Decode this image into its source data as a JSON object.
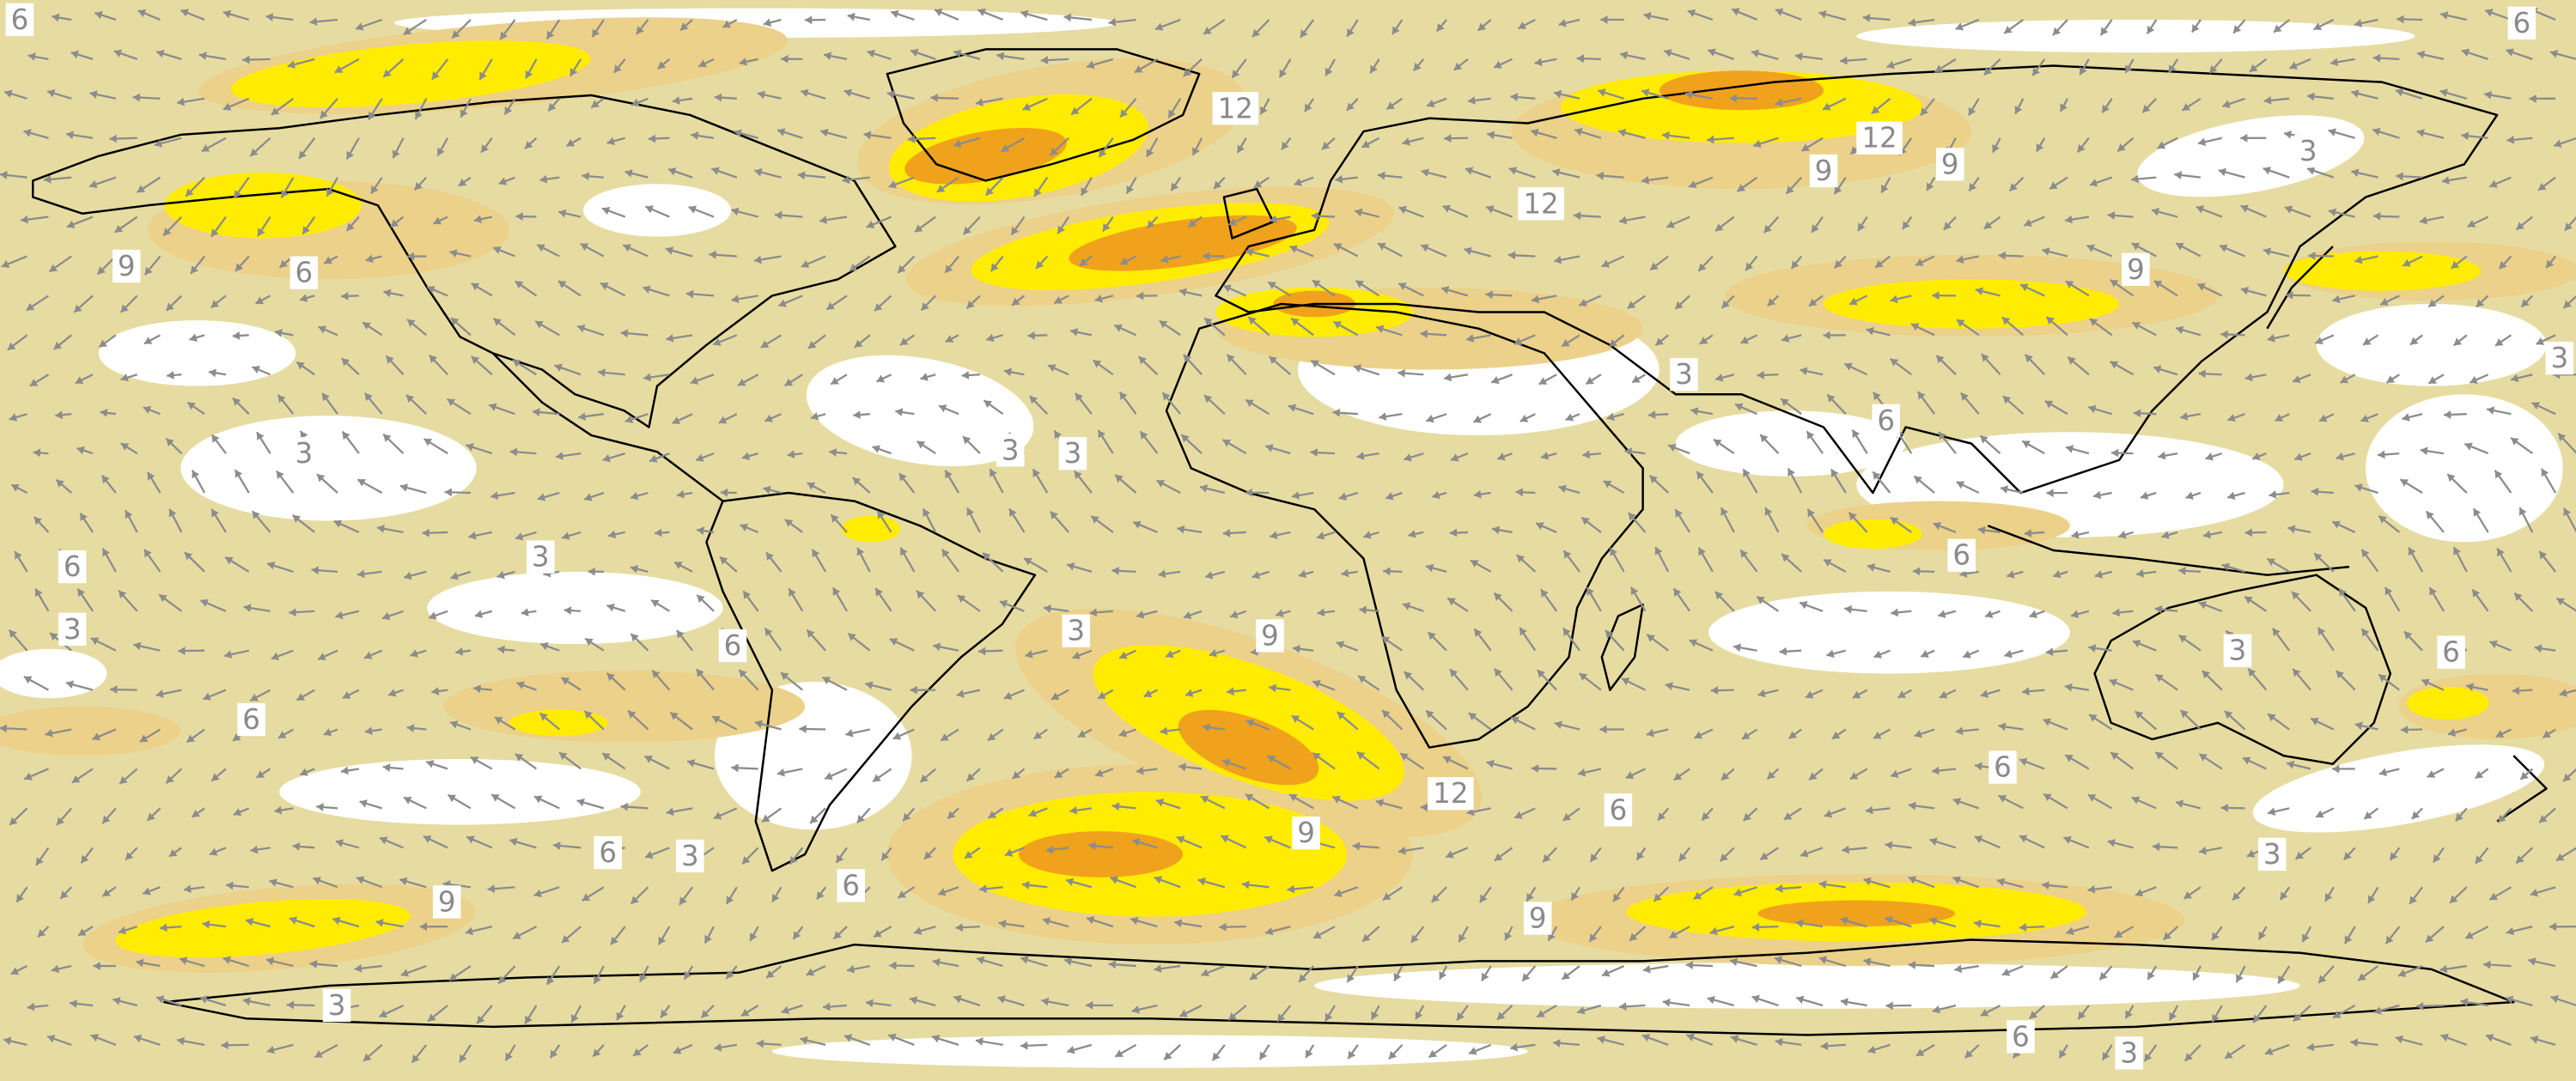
{
  "contour_labels": [
    "6",
    "6",
    "12",
    "12",
    "9",
    "9",
    "3",
    "12",
    "9",
    "6",
    "9",
    "3",
    "3",
    "3",
    "3",
    "3",
    "6",
    "6",
    "3",
    "6",
    "3",
    "3",
    "9",
    "6",
    "3",
    "6",
    "6",
    "6",
    "12",
    "6",
    "9",
    "6",
    "3",
    "3",
    "9",
    "6",
    "9",
    "3",
    "6",
    "3"
  ]
}
